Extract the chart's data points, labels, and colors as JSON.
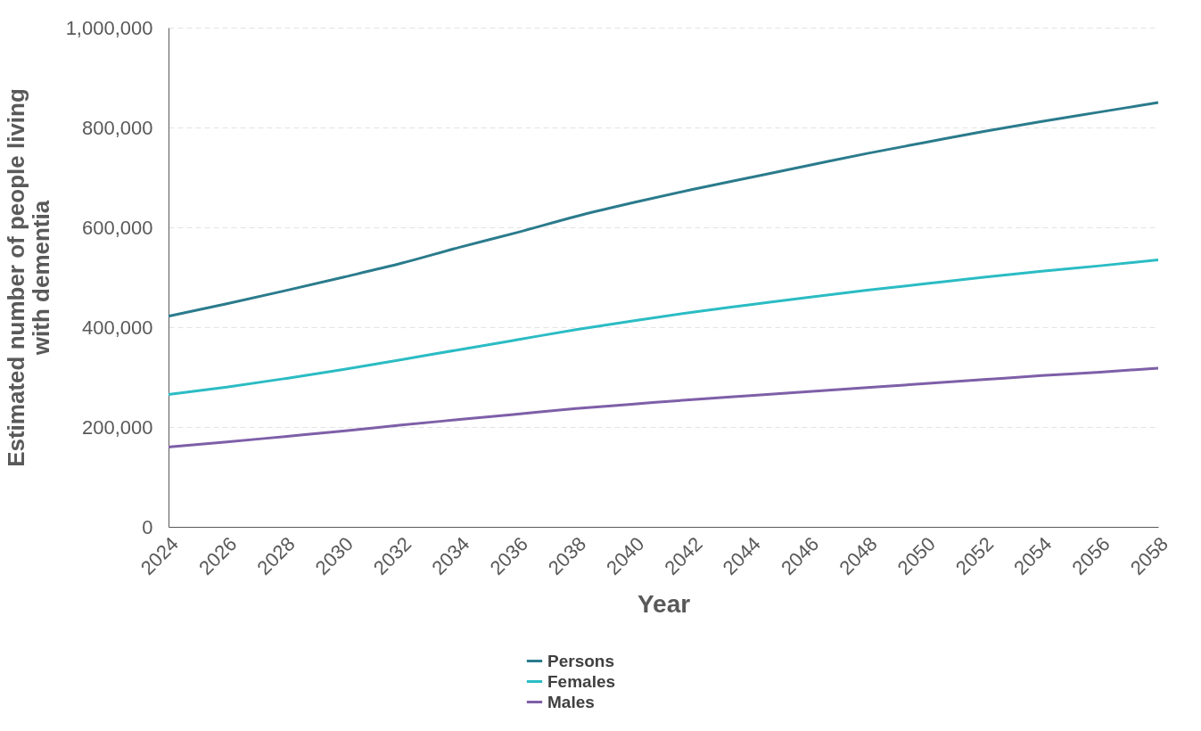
{
  "chart_data": {
    "type": "line",
    "xlabel": "Year",
    "ylabel": "Estimated number of people living with dementia",
    "x": [
      2024,
      2026,
      2028,
      2030,
      2032,
      2034,
      2036,
      2038,
      2040,
      2042,
      2044,
      2046,
      2048,
      2050,
      2052,
      2054,
      2056,
      2058
    ],
    "series": [
      {
        "name": "Persons",
        "color": "#2a7b8c",
        "values": [
          422000,
          447000,
          473000,
          500000,
          528000,
          560000,
          590000,
          622000,
          650000,
          676000,
          700000,
          724000,
          748000,
          770000,
          792000,
          812000,
          831000,
          850000
        ]
      },
      {
        "name": "Females",
        "color": "#2bbcc4",
        "values": [
          265000,
          280000,
          297000,
          315000,
          335000,
          355000,
          375000,
          395000,
          413000,
          430000,
          445000,
          460000,
          474000,
          487000,
          500000,
          512000,
          523000,
          535000
        ]
      },
      {
        "name": "Males",
        "color": "#7e5fa8",
        "values": [
          160000,
          170000,
          181000,
          192000,
          204000,
          215000,
          226000,
          237000,
          246000,
          255000,
          263000,
          271000,
          279000,
          287000,
          295000,
          303000,
          310000,
          318000
        ]
      }
    ],
    "xlim": [
      2024,
      2058
    ],
    "xticks": [
      2024,
      2026,
      2028,
      2030,
      2032,
      2034,
      2036,
      2038,
      2040,
      2042,
      2044,
      2046,
      2048,
      2050,
      2052,
      2054,
      2056,
      2058
    ],
    "ylim": [
      0,
      1000000
    ],
    "yticks": [
      {
        "value": 0,
        "label": "0"
      },
      {
        "value": 200000,
        "label": "200,000"
      },
      {
        "value": 400000,
        "label": "400,000"
      },
      {
        "value": 600000,
        "label": "600,000"
      },
      {
        "value": 800000,
        "label": "800,000"
      },
      {
        "value": 1000000,
        "label": "1,000,000"
      }
    ],
    "grid": "y",
    "legend": "bottom",
    "marker": "none",
    "line_style": "solid"
  }
}
